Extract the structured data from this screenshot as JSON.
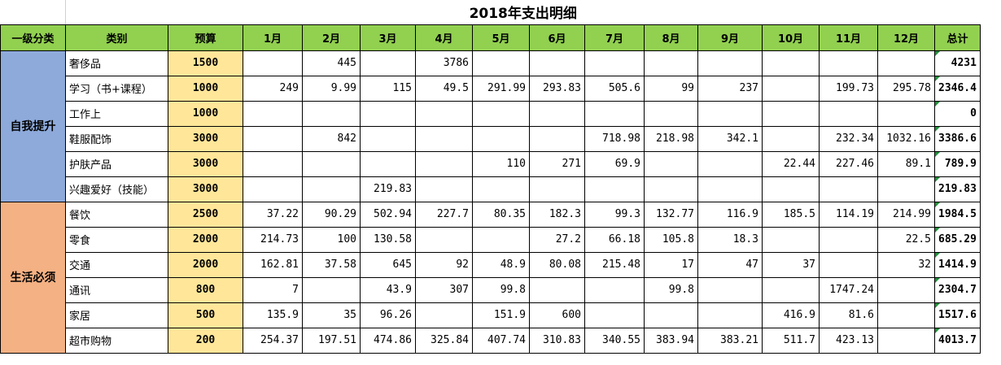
{
  "title": "2018年支出明细",
  "headers": [
    "一级分类",
    "类别",
    "预算",
    "1月",
    "2月",
    "3月",
    "4月",
    "5月",
    "6月",
    "7月",
    "8月",
    "9月",
    "10月",
    "11月",
    "12月",
    "总计"
  ],
  "groups": [
    {
      "name": "自我提升",
      "color": "#8eaadb",
      "rows": [
        {
          "category": "奢侈品",
          "budget": "1500",
          "months": [
            "",
            "445",
            "",
            "3786",
            "",
            "",
            "",
            "",
            "",
            "",
            "",
            ""
          ],
          "total": "4231"
        },
        {
          "category": "学习（书+课程）",
          "budget": "1000",
          "months": [
            "249",
            "9.99",
            "115",
            "49.5",
            "291.99",
            "293.83",
            "505.6",
            "99",
            "237",
            "",
            "199.73",
            "295.78"
          ],
          "total": "2346.4"
        },
        {
          "category": "工作上",
          "budget": "1000",
          "months": [
            "",
            "",
            "",
            "",
            "",
            "",
            "",
            "",
            "",
            "",
            "",
            ""
          ],
          "total": "0"
        },
        {
          "category": "鞋服配饰",
          "budget": "3000",
          "months": [
            "",
            "842",
            "",
            "",
            "",
            "",
            "718.98",
            "218.98",
            "342.1",
            "",
            "232.34",
            "1032.16"
          ],
          "total": "3386.6"
        },
        {
          "category": "护肤产品",
          "budget": "3000",
          "months": [
            "",
            "",
            "",
            "",
            "110",
            "271",
            "69.9",
            "",
            "",
            "22.44",
            "227.46",
            "89.1"
          ],
          "total": "789.9"
        },
        {
          "category": "兴趣爱好（技能）",
          "budget": "3000",
          "months": [
            "",
            "",
            "219.83",
            "",
            "",
            "",
            "",
            "",
            "",
            "",
            "",
            ""
          ],
          "total": "219.83"
        }
      ]
    },
    {
      "name": "生活必须",
      "color": "#f4b183",
      "rows": [
        {
          "category": "餐饮",
          "budget": "2500",
          "months": [
            "37.22",
            "90.29",
            "502.94",
            "227.7",
            "80.35",
            "182.3",
            "99.3",
            "132.77",
            "116.9",
            "185.5",
            "114.19",
            "214.99"
          ],
          "total": "1984.5"
        },
        {
          "category": "零食",
          "budget": "2000",
          "months": [
            "214.73",
            "100",
            "130.58",
            "",
            "",
            "27.2",
            "66.18",
            "105.8",
            "18.3",
            "",
            "",
            "22.5"
          ],
          "total": "685.29"
        },
        {
          "category": "交通",
          "budget": "2000",
          "months": [
            "162.81",
            "37.58",
            "645",
            "92",
            "48.9",
            "80.08",
            "215.48",
            "17",
            "47",
            "37",
            "",
            "32"
          ],
          "total": "1414.9"
        },
        {
          "category": "通讯",
          "budget": "800",
          "months": [
            "7",
            "",
            "43.9",
            "307",
            "99.8",
            "",
            "",
            "99.8",
            "",
            "",
            "1747.24",
            ""
          ],
          "total": "2304.7"
        },
        {
          "category": "家居",
          "budget": "500",
          "months": [
            "135.9",
            "35",
            "96.26",
            "",
            "151.9",
            "600",
            "",
            "",
            "",
            "416.9",
            "81.6",
            ""
          ],
          "total": "1517.6"
        },
        {
          "category": "超市购物",
          "budget": "200",
          "months": [
            "254.37",
            "197.51",
            "474.86",
            "325.84",
            "407.74",
            "310.83",
            "340.55",
            "383.94",
            "383.21",
            "511.7",
            "423.13",
            ""
          ],
          "total": "4013.7"
        }
      ]
    }
  ]
}
